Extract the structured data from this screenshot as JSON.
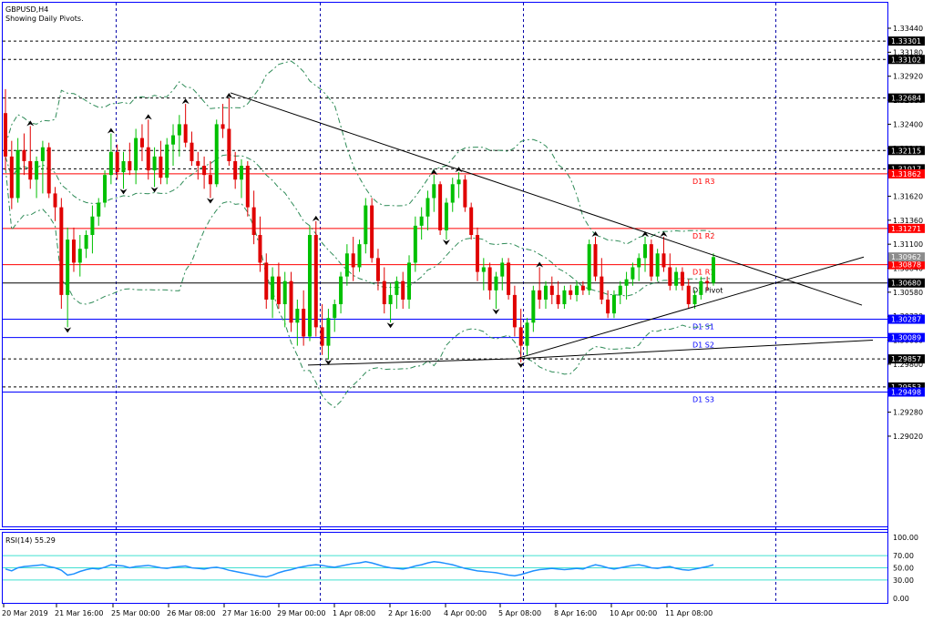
{
  "header": {
    "symbol": "GBPUSD,H4",
    "subtitle": "Showing Daily Pivots."
  },
  "colors": {
    "frame": "#0000ff",
    "bull": "#00c000",
    "bear": "#e00000",
    "pivot_red": "#ff0000",
    "pivot_blue": "#0000ff",
    "pivot_black": "#000000",
    "grid": "#0000aa",
    "bands": "#2e8b57",
    "rsi_line": "#1e90ff",
    "rsi_levels": "#40e0d0"
  },
  "chart_data": [
    {
      "type": "candlestick",
      "ylim": [
        1.2886,
        1.3355
      ],
      "y_ticks": [
        "1.33440",
        "1.33180",
        "1.32920",
        "1.32660",
        "1.32400",
        "1.32140",
        "1.31880",
        "1.31620",
        "1.31360",
        "1.31100",
        "1.30840",
        "1.30580",
        "1.30320",
        "1.30060",
        "1.29800",
        "1.29540",
        "1.29280",
        "1.29020"
      ],
      "x_ticks": [
        "20 Mar 2019",
        "21 Mar 16:00",
        "25 Mar 00:00",
        "26 Mar 08:00",
        "27 Mar 16:00",
        "29 Mar 00:00",
        "1 Apr 08:00",
        "2 Apr 16:00",
        "4 Apr 00:00",
        "5 Apr 08:00",
        "8 Apr 16:00",
        "10 Apr 00:00",
        "11 Apr 08:00"
      ],
      "pivot_lines": [
        {
          "label": "D1 R3",
          "value": 1.31862,
          "color": "red",
          "tag": "1.31862"
        },
        {
          "label": "D1 R2",
          "value": 1.31271,
          "color": "red",
          "tag": "1.31271"
        },
        {
          "label": "D1 R1",
          "value": 1.30878,
          "color": "red",
          "tag": "1.30878"
        },
        {
          "label": "D1 Pivot",
          "value": 1.3068,
          "color": "black",
          "tag": "1.30680"
        },
        {
          "label": "D1 S1",
          "value": 1.30287,
          "color": "blue",
          "tag": "1.30287"
        },
        {
          "label": "D1 S2",
          "value": 1.30089,
          "color": "blue",
          "tag": "1.30089"
        },
        {
          "label": "D1 S3",
          "value": 1.29498,
          "color": "blue",
          "tag": "1.29498"
        }
      ],
      "level_lines": [
        1.33301,
        1.33102,
        1.32684,
        1.32115,
        1.31917,
        1.29857,
        1.29553
      ],
      "level_tags": [
        "1.33301",
        "1.33102",
        "1.32684",
        "1.32115",
        "1.31917",
        "1.29857",
        "1.29553"
      ],
      "current_price": {
        "value": 1.30962,
        "tag": "1.30962"
      },
      "trendlines": [
        {
          "from": [
            253,
            1.3274
          ],
          "to": [
            946,
            1.3044
          ]
        },
        {
          "from": [
            338,
            1.2979
          ],
          "to": [
            567,
            1.2986
          ]
        },
        {
          "from": [
            567,
            1.2986
          ],
          "to": [
            948,
            1.30961
          ]
        },
        {
          "from": [
            567,
            1.2986
          ],
          "to": [
            958,
            1.3006
          ]
        }
      ],
      "candles": [
        [
          1.3252,
          1.3278,
          1.319,
          1.3205
        ],
        [
          1.3205,
          1.3222,
          1.3148,
          1.316
        ],
        [
          1.316,
          1.3225,
          1.3155,
          1.3212
        ],
        [
          1.3212,
          1.323,
          1.3185,
          1.32
        ],
        [
          1.32,
          1.3238,
          1.317,
          1.318
        ],
        [
          1.318,
          1.3205,
          1.316,
          1.32
        ],
        [
          1.32,
          1.3222,
          1.3165,
          1.3215
        ],
        [
          1.3215,
          1.322,
          1.316,
          1.3165
        ],
        [
          1.3165,
          1.3172,
          1.3135,
          1.315
        ],
        [
          1.315,
          1.316,
          1.304,
          1.3055
        ],
        [
          1.3055,
          1.3128,
          1.302,
          1.3115
        ],
        [
          1.3115,
          1.3128,
          1.308,
          1.309
        ],
        [
          1.309,
          1.312,
          1.3075,
          1.3105
        ],
        [
          1.3105,
          1.3125,
          1.3095,
          1.312
        ],
        [
          1.312,
          1.3152,
          1.31,
          1.314
        ],
        [
          1.314,
          1.316,
          1.313,
          1.3155
        ],
        [
          1.3155,
          1.319,
          1.315,
          1.3185
        ],
        [
          1.3185,
          1.323,
          1.3175,
          1.321
        ],
        [
          1.321,
          1.3218,
          1.318,
          1.3188
        ],
        [
          1.3188,
          1.321,
          1.317,
          1.32
        ],
        [
          1.32,
          1.322,
          1.3185,
          1.319
        ],
        [
          1.319,
          1.3235,
          1.3175,
          1.3225
        ],
        [
          1.3225,
          1.324,
          1.32,
          1.3215
        ],
        [
          1.3215,
          1.3245,
          1.318,
          1.319
        ],
        [
          1.319,
          1.3215,
          1.3172,
          1.3205
        ],
        [
          1.3205,
          1.3222,
          1.3175,
          1.3182
        ],
        [
          1.3182,
          1.3225,
          1.3175,
          1.3218
        ],
        [
          1.3218,
          1.324,
          1.3195,
          1.3228
        ],
        [
          1.3228,
          1.325,
          1.3205,
          1.324
        ],
        [
          1.324,
          1.3262,
          1.3215,
          1.322
        ],
        [
          1.322,
          1.3232,
          1.3195,
          1.32
        ],
        [
          1.32,
          1.321,
          1.318,
          1.3195
        ],
        [
          1.3195,
          1.3205,
          1.317,
          1.3185
        ],
        [
          1.3185,
          1.32,
          1.316,
          1.3175
        ],
        [
          1.3175,
          1.3245,
          1.3172,
          1.324
        ],
        [
          1.324,
          1.3262,
          1.3225,
          1.3235
        ],
        [
          1.3235,
          1.3268,
          1.3195,
          1.32
        ],
        [
          1.32,
          1.321,
          1.317,
          1.318
        ],
        [
          1.318,
          1.3202,
          1.316,
          1.3195
        ],
        [
          1.3195,
          1.32,
          1.314,
          1.315
        ],
        [
          1.315,
          1.3168,
          1.311,
          1.312
        ],
        [
          1.312,
          1.314,
          1.308,
          1.309
        ],
        [
          1.309,
          1.31,
          1.304,
          1.305
        ],
        [
          1.305,
          1.3085,
          1.303,
          1.3075
        ],
        [
          1.3075,
          1.309,
          1.304,
          1.3045
        ],
        [
          1.3045,
          1.308,
          1.302,
          1.307
        ],
        [
          1.307,
          1.308,
          1.3015,
          1.3025
        ],
        [
          1.3025,
          1.305,
          1.3,
          1.304
        ],
        [
          1.304,
          1.306,
          1.3,
          1.301
        ],
        [
          1.301,
          1.313,
          1.3005,
          1.312
        ],
        [
          1.312,
          1.3135,
          1.301,
          1.302
        ],
        [
          1.302,
          1.3045,
          1.299,
          1.3
        ],
        [
          1.3,
          1.304,
          1.2985,
          1.303
        ],
        [
          1.303,
          1.305,
          1.3015,
          1.3045
        ],
        [
          1.3045,
          1.308,
          1.3035,
          1.3075
        ],
        [
          1.3075,
          1.311,
          1.3065,
          1.31
        ],
        [
          1.31,
          1.3118,
          1.307,
          1.3085
        ],
        [
          1.3085,
          1.3115,
          1.308,
          1.311
        ],
        [
          1.311,
          1.316,
          1.31,
          1.3152
        ],
        [
          1.3152,
          1.316,
          1.309,
          1.3095
        ],
        [
          1.3095,
          1.3105,
          1.306,
          1.307
        ],
        [
          1.307,
          1.3085,
          1.3035,
          1.3045
        ],
        [
          1.3045,
          1.3068,
          1.3025,
          1.3055
        ],
        [
          1.3055,
          1.3075,
          1.304,
          1.307
        ],
        [
          1.307,
          1.308,
          1.304,
          1.305
        ],
        [
          1.305,
          1.3098,
          1.304,
          1.309
        ],
        [
          1.309,
          1.314,
          1.308,
          1.313
        ],
        [
          1.313,
          1.315,
          1.3115,
          1.314
        ],
        [
          1.314,
          1.3168,
          1.3125,
          1.316
        ],
        [
          1.316,
          1.3185,
          1.3145,
          1.3175
        ],
        [
          1.3175,
          1.3178,
          1.312,
          1.3125
        ],
        [
          1.3125,
          1.316,
          1.3115,
          1.3155
        ],
        [
          1.3155,
          1.3182,
          1.3145,
          1.3175
        ],
        [
          1.3175,
          1.3188,
          1.316,
          1.318
        ],
        [
          1.318,
          1.3185,
          1.3145,
          1.315
        ],
        [
          1.315,
          1.3155,
          1.3115,
          1.312
        ],
        [
          1.312,
          1.3128,
          1.307,
          1.308
        ],
        [
          1.308,
          1.3095,
          1.306,
          1.3085
        ],
        [
          1.3085,
          1.309,
          1.305,
          1.306
        ],
        [
          1.306,
          1.308,
          1.304,
          1.3075
        ],
        [
          1.3075,
          1.3095,
          1.306,
          1.309
        ],
        [
          1.309,
          1.3095,
          1.305,
          1.3055
        ],
        [
          1.3055,
          1.3065,
          1.301,
          1.302
        ],
        [
          1.302,
          1.304,
          1.2982,
          1.3
        ],
        [
          1.3,
          1.303,
          1.299,
          1.3025
        ],
        [
          1.3025,
          1.3065,
          1.3015,
          1.306
        ],
        [
          1.306,
          1.3085,
          1.304,
          1.305
        ],
        [
          1.305,
          1.307,
          1.304,
          1.3065
        ],
        [
          1.3065,
          1.3075,
          1.3045,
          1.3055
        ],
        [
          1.3055,
          1.307,
          1.304,
          1.3045
        ],
        [
          1.3045,
          1.3065,
          1.304,
          1.306
        ],
        [
          1.306,
          1.3066,
          1.305,
          1.3055
        ],
        [
          1.3055,
          1.307,
          1.3048,
          1.3065
        ],
        [
          1.3065,
          1.307,
          1.3055,
          1.306
        ],
        [
          1.306,
          1.3115,
          1.3055,
          1.311
        ],
        [
          1.311,
          1.3118,
          1.307,
          1.3075
        ],
        [
          1.3075,
          1.3095,
          1.3045,
          1.305
        ],
        [
          1.305,
          1.306,
          1.303,
          1.3035
        ],
        [
          1.3035,
          1.306,
          1.303,
          1.3055
        ],
        [
          1.3055,
          1.307,
          1.3045,
          1.3065
        ],
        [
          1.3065,
          1.308,
          1.305,
          1.3072
        ],
        [
          1.3072,
          1.309,
          1.3065,
          1.3085
        ],
        [
          1.3085,
          1.31,
          1.307,
          1.3095
        ],
        [
          1.3095,
          1.3118,
          1.308,
          1.311
        ],
        [
          1.311,
          1.3115,
          1.307,
          1.3075
        ],
        [
          1.3075,
          1.3105,
          1.307,
          1.31
        ],
        [
          1.31,
          1.3118,
          1.308,
          1.3085
        ],
        [
          1.3085,
          1.31,
          1.306,
          1.3065
        ],
        [
          1.3065,
          1.3085,
          1.306,
          1.308
        ],
        [
          1.308,
          1.3085,
          1.306,
          1.3065
        ],
        [
          1.3065,
          1.3072,
          1.304,
          1.3045
        ],
        [
          1.3045,
          1.306,
          1.304,
          1.3055
        ],
        [
          1.3055,
          1.3075,
          1.305,
          1.307
        ],
        [
          1.307,
          1.3075,
          1.306,
          1.3068
        ],
        [
          1.3068,
          1.31,
          1.3065,
          1.3096
        ]
      ]
    },
    {
      "type": "line",
      "title": "RSI(14) 55.29",
      "ylim": [
        0,
        100
      ],
      "y_ticks": [
        "100.00",
        "70.00",
        "50.00",
        "30.00",
        "0.00"
      ],
      "levels": [
        70,
        50,
        30
      ],
      "values": [
        48,
        45,
        50,
        52,
        53,
        54,
        55,
        52,
        50,
        46,
        38,
        40,
        44,
        47,
        49,
        48,
        51,
        55,
        54,
        53,
        50,
        52,
        53,
        54,
        52,
        50,
        49,
        51,
        52,
        53,
        50,
        49,
        48,
        50,
        51,
        49,
        46,
        44,
        42,
        40,
        38,
        36,
        35,
        38,
        42,
        45,
        47,
        50,
        52,
        54,
        55,
        54,
        52,
        51,
        53,
        55,
        57,
        58,
        60,
        58,
        55,
        52,
        50,
        49,
        48,
        50,
        53,
        55,
        58,
        60,
        59,
        57,
        55,
        52,
        49,
        47,
        45,
        44,
        43,
        42,
        40,
        38,
        37,
        39,
        42,
        45,
        47,
        48,
        49,
        48,
        47,
        48,
        49,
        48,
        52,
        55,
        53,
        50,
        48,
        50,
        52,
        54,
        55,
        53,
        50,
        49,
        51,
        52,
        49,
        47,
        46,
        48,
        50,
        52,
        55
      ]
    }
  ]
}
